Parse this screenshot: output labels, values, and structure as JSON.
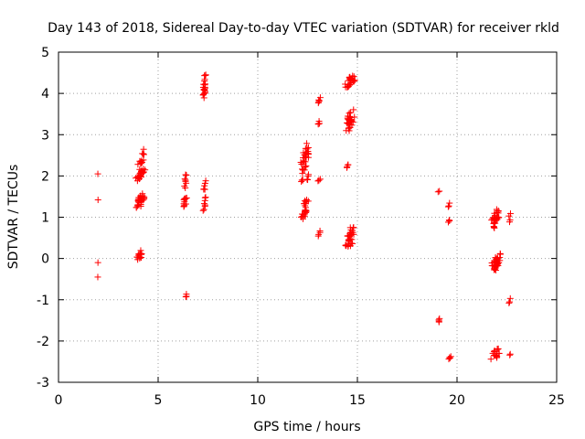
{
  "chart_data": {
    "type": "scatter",
    "title": "Day 143 of 2018, Sidereal Day-to-day VTEC variation (SDTVAR) for receiver rkld",
    "xlabel": "GPS time / hours",
    "ylabel": "SDTVAR / TECUs",
    "xlim": [
      0,
      25
    ],
    "ylim": [
      -3,
      5
    ],
    "xticks": [
      "0",
      "5",
      "10",
      "15",
      "20",
      "25"
    ],
    "yticks": [
      "-3",
      "-2",
      "-1",
      "0",
      "1",
      "2",
      "3",
      "4",
      "5"
    ],
    "grid": true,
    "marker": "+",
    "color": "#ff0000",
    "series": [
      {
        "name": "SDTVAR",
        "clusters": [
          {
            "x": [
              1.95,
              2.0
            ],
            "y": [
              2.05,
              2.05
            ],
            "n": 1
          },
          {
            "x": [
              1.95,
              2.0
            ],
            "y": [
              1.42,
              1.42
            ],
            "n": 1
          },
          {
            "x": [
              1.95,
              2.0
            ],
            "y": [
              -0.1,
              -0.1
            ],
            "n": 1
          },
          {
            "x": [
              1.95,
              2.0
            ],
            "y": [
              -0.45,
              -0.45
            ],
            "n": 1
          },
          {
            "x": [
              3.85,
              4.35
            ],
            "y": [
              1.85,
              2.2
            ],
            "n": 24
          },
          {
            "x": [
              3.95,
              4.35
            ],
            "y": [
              2.2,
              2.65
            ],
            "n": 12
          },
          {
            "x": [
              3.85,
              4.4
            ],
            "y": [
              1.2,
              1.6
            ],
            "n": 30
          },
          {
            "x": [
              3.85,
              4.35
            ],
            "y": [
              -0.05,
              0.2
            ],
            "n": 14
          },
          {
            "x": [
              6.3,
              6.45
            ],
            "y": [
              1.7,
              2.05
            ],
            "n": 8
          },
          {
            "x": [
              6.25,
              6.45
            ],
            "y": [
              1.15,
              1.6
            ],
            "n": 12
          },
          {
            "x": [
              6.35,
              6.45
            ],
            "y": [
              -0.95,
              -0.85
            ],
            "n": 3
          },
          {
            "x": [
              7.25,
              7.4
            ],
            "y": [
              3.75,
              4.55
            ],
            "n": 22
          },
          {
            "x": [
              7.25,
              7.4
            ],
            "y": [
              1.6,
              1.9
            ],
            "n": 6
          },
          {
            "x": [
              7.25,
              7.4
            ],
            "y": [
              1.15,
              1.55
            ],
            "n": 8
          },
          {
            "x": [
              12.15,
              12.6
            ],
            "y": [
              2.0,
              2.8
            ],
            "n": 30
          },
          {
            "x": [
              12.15,
              12.6
            ],
            "y": [
              1.8,
              2.05
            ],
            "n": 8
          },
          {
            "x": [
              12.2,
              12.6
            ],
            "y": [
              1.3,
              1.45
            ],
            "n": 8
          },
          {
            "x": [
              12.15,
              12.55
            ],
            "y": [
              0.9,
              1.3
            ],
            "n": 18
          },
          {
            "x": [
              13.0,
              13.15
            ],
            "y": [
              3.75,
              3.9
            ],
            "n": 5
          },
          {
            "x": [
              13.0,
              13.15
            ],
            "y": [
              3.2,
              3.35
            ],
            "n": 4
          },
          {
            "x": [
              13.0,
              13.15
            ],
            "y": [
              1.85,
              1.95
            ],
            "n": 3
          },
          {
            "x": [
              13.0,
              13.15
            ],
            "y": [
              0.5,
              0.7
            ],
            "n": 4
          },
          {
            "x": [
              14.35,
              14.9
            ],
            "y": [
              4.05,
              4.5
            ],
            "n": 24
          },
          {
            "x": [
              14.35,
              14.9
            ],
            "y": [
              3.05,
              3.65
            ],
            "n": 30
          },
          {
            "x": [
              14.4,
              14.6
            ],
            "y": [
              2.2,
              2.3
            ],
            "n": 4
          },
          {
            "x": [
              14.35,
              14.95
            ],
            "y": [
              0.2,
              0.8
            ],
            "n": 32
          },
          {
            "x": [
              19.05,
              19.15
            ],
            "y": [
              1.6,
              1.65
            ],
            "n": 2
          },
          {
            "x": [
              19.05,
              19.15
            ],
            "y": [
              -1.55,
              -1.45
            ],
            "n": 4
          },
          {
            "x": [
              19.55,
              19.65
            ],
            "y": [
              1.2,
              1.35
            ],
            "n": 3
          },
          {
            "x": [
              19.55,
              19.65
            ],
            "y": [
              0.85,
              0.95
            ],
            "n": 3
          },
          {
            "x": [
              19.55,
              19.7
            ],
            "y": [
              -2.45,
              -2.35
            ],
            "n": 4
          },
          {
            "x": [
              21.7,
              22.15
            ],
            "y": [
              0.7,
              1.25
            ],
            "n": 30
          },
          {
            "x": [
              21.7,
              22.2
            ],
            "y": [
              -0.35,
              0.15
            ],
            "n": 34
          },
          {
            "x": [
              21.65,
              22.25
            ],
            "y": [
              -2.5,
              -2.15
            ],
            "n": 16
          },
          {
            "x": [
              22.6,
              22.7
            ],
            "y": [
              1.0,
              1.1
            ],
            "n": 2
          },
          {
            "x": [
              22.6,
              22.7
            ],
            "y": [
              0.85,
              0.95
            ],
            "n": 2
          },
          {
            "x": [
              22.6,
              22.7
            ],
            "y": [
              -1.1,
              -0.95
            ],
            "n": 3
          },
          {
            "x": [
              22.6,
              22.7
            ],
            "y": [
              -2.35,
              -2.3
            ],
            "n": 2
          }
        ]
      }
    ]
  }
}
